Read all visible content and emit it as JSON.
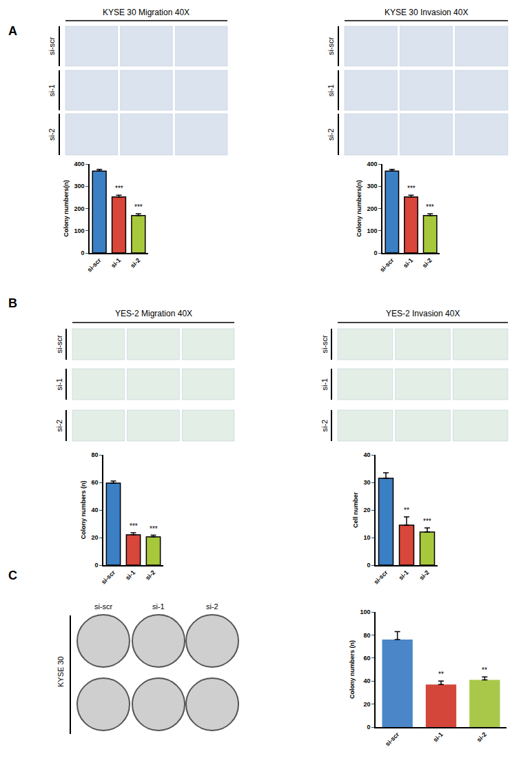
{
  "panels": [
    {
      "label": "A",
      "image_groups": [
        {
          "title": "KYSE 30 Migration 40X",
          "rows": [
            "si-scr",
            "si-1",
            "si-2"
          ]
        },
        {
          "title": "KYSE 30 Invasion 40X",
          "rows": [
            "si-scr",
            "si-1",
            "si-2"
          ]
        }
      ]
    },
    {
      "label": "B",
      "image_groups": [
        {
          "title": "YES-2 Migration 40X",
          "rows": [
            "si-scr",
            "si-1",
            "si-2"
          ]
        },
        {
          "title": "YES-2 Invasion 40X",
          "rows": [
            "si-scr",
            "si-1",
            "si-2"
          ]
        }
      ]
    },
    {
      "label": "C",
      "columns": [
        "si-scr",
        "si-1",
        "si-2"
      ],
      "row_label": "KYSE 30"
    }
  ],
  "chart_data": [
    {
      "type": "bar",
      "y_label": "Colony numbers(n)",
      "categories": [
        "si-scr",
        "si-1",
        "si-2"
      ],
      "values": [
        368,
        252,
        168
      ],
      "errors": [
        8,
        8,
        8
      ],
      "colors": [
        "#3b7fc4",
        "#d9463a",
        "#a8c83c"
      ],
      "annotations": [
        {
          "category": "si-1",
          "text": "***"
        },
        {
          "category": "si-2",
          "text": "***"
        }
      ],
      "ylim": [
        0,
        400
      ],
      "yticks": [
        0,
        100,
        200,
        300,
        400
      ],
      "grid": false
    },
    {
      "type": "bar",
      "y_label": "Colony numbers(n)",
      "categories": [
        "si-scr",
        "si-1",
        "si-2"
      ],
      "values": [
        368,
        252,
        168
      ],
      "errors": [
        8,
        8,
        8
      ],
      "colors": [
        "#3b7fc4",
        "#d9463a",
        "#a8c83c"
      ],
      "annotations": [
        {
          "category": "si-1",
          "text": "***"
        },
        {
          "category": "si-2",
          "text": "***"
        }
      ],
      "ylim": [
        0,
        400
      ],
      "yticks": [
        0,
        100,
        200,
        300,
        400
      ],
      "grid": false
    },
    {
      "type": "bar",
      "y_label": "Colony numbers (n)",
      "categories": [
        "si-scr",
        "si-1",
        "si-2"
      ],
      "values": [
        59.5,
        22,
        20.5
      ],
      "errors": [
        1.5,
        1.5,
        1.2
      ],
      "colors": [
        "#3b7fc4",
        "#d9463a",
        "#a8c83c"
      ],
      "annotations": [
        {
          "category": "si-1",
          "text": "***"
        },
        {
          "category": "si-2",
          "text": "***"
        }
      ],
      "ylim": [
        0,
        80
      ],
      "yticks": [
        0,
        20,
        40,
        60,
        80
      ],
      "grid": false
    },
    {
      "type": "bar",
      "y_label": "Cell number",
      "categories": [
        "si-scr",
        "si-1",
        "si-2"
      ],
      "values": [
        31.5,
        14.5,
        12
      ],
      "errors": [
        2,
        3,
        1.5
      ],
      "colors": [
        "#3b7fc4",
        "#d9463a",
        "#a8c83c"
      ],
      "annotations": [
        {
          "category": "si-1",
          "text": "**"
        },
        {
          "category": "si-2",
          "text": "***"
        }
      ],
      "ylim": [
        0,
        40
      ],
      "yticks": [
        0,
        10,
        20,
        30,
        40
      ],
      "grid": false
    },
    {
      "type": "bar",
      "y_label": "Colony numbers (n)",
      "categories": [
        "si-scr",
        "si-1",
        "si-2"
      ],
      "values": [
        76,
        37,
        41
      ],
      "errors": [
        7,
        3,
        2.5
      ],
      "colors": [
        "#4a86c8",
        "#d4453a",
        "#a9c84a"
      ],
      "annotations": [
        {
          "category": "si-1",
          "text": "**"
        },
        {
          "category": "si-2",
          "text": "**"
        }
      ],
      "ylim": [
        0,
        100
      ],
      "yticks": [
        0,
        20,
        40,
        60,
        80,
        100
      ],
      "grid": false
    }
  ]
}
